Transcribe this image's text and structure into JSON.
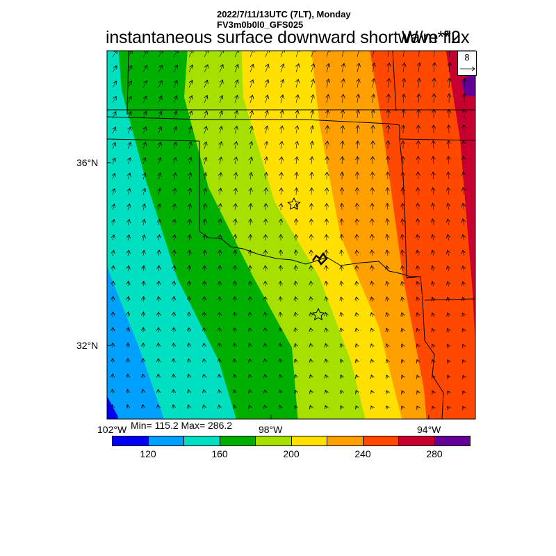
{
  "header": {
    "line1": "2022/7/11/13UTC (7LT), Monday",
    "line2": "FV3m0b0l0_GFS025",
    "title": "instantaneous surface downward shortwave flux",
    "units": "W/m**2"
  },
  "map": {
    "lat_labels": [
      "36°N",
      "32°N"
    ],
    "lon_labels": [
      "102°W",
      "98°W",
      "94°W"
    ],
    "min_max": "Min= 115.2 Max= 286.2",
    "vector_reference": "8",
    "field_colors": [
      "#0000f2",
      "#00a0ff",
      "#00e0c0",
      "#00b000",
      "#a6e000",
      "#ffe000",
      "#ffa000",
      "#ff4800",
      "#c80030",
      "#640096"
    ],
    "markers": [
      "star-icon",
      "star-icon"
    ]
  },
  "colorbar": {
    "colors": [
      "#0000f2",
      "#00a0ff",
      "#00e0c0",
      "#00b000",
      "#a6e000",
      "#ffe000",
      "#ffa000",
      "#ff4800",
      "#c80030",
      "#640096"
    ],
    "labels": [
      "120",
      "160",
      "200",
      "240",
      "280"
    ]
  }
}
